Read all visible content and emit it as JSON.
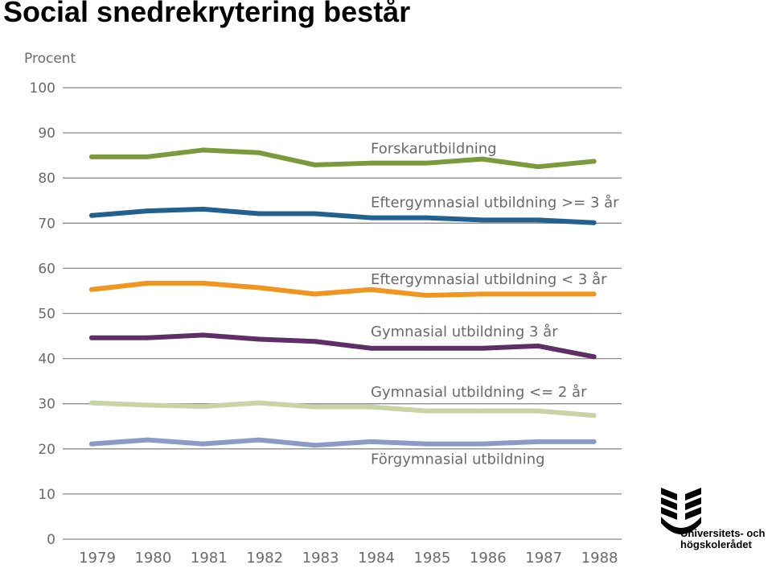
{
  "slide": {
    "title": "Social snedrekrytering består"
  },
  "logo": {
    "line1": "Universitets- och",
    "line2": "högskolerådet",
    "icon": "uhr-logo-icon"
  },
  "chart_data": {
    "type": "line",
    "ylabel": "Procent",
    "ylim": [
      0,
      100
    ],
    "yticks": [
      0,
      10,
      20,
      30,
      40,
      50,
      60,
      70,
      80,
      90,
      100
    ],
    "grid": true,
    "x": [
      "1979",
      "1980",
      "1981",
      "1982",
      "1983",
      "1984",
      "1985",
      "1986",
      "1987",
      "1988"
    ],
    "series": [
      {
        "name": "Forskarutbildning",
        "color": "#7a9a3c",
        "values": [
          84.7,
          84.7,
          86.2,
          85.6,
          82.9,
          83.3,
          83.3,
          84.2,
          82.5,
          83.7
        ],
        "label_value": 86.5
      },
      {
        "name": "Eftergymnasial utbildning  >= 3 år",
        "color": "#22608f",
        "values": [
          71.7,
          72.7,
          73.1,
          72.1,
          72.1,
          71.2,
          71.2,
          70.7,
          70.7,
          70.1
        ],
        "label_value": 74.6
      },
      {
        "name": "Eftergymnasial utbildning  < 3 år",
        "color": "#f0961e",
        "values": [
          55.3,
          56.7,
          56.7,
          55.7,
          54.3,
          55.3,
          54.0,
          54.3,
          54.3,
          54.3
        ],
        "label_value": 57.6
      },
      {
        "name": "Gymnasial utbildning 3 år",
        "color": "#5e2e66",
        "values": [
          44.6,
          44.6,
          45.2,
          44.3,
          43.8,
          42.3,
          42.3,
          42.3,
          42.8,
          40.4
        ],
        "label_value": 46.0
      },
      {
        "name": "Gymnasial utbildning  <= 2 år",
        "color": "#c8d4a6",
        "values": [
          30.2,
          29.7,
          29.4,
          30.2,
          29.3,
          29.3,
          28.4,
          28.4,
          28.4,
          27.4
        ],
        "label_value": 32.6
      },
      {
        "name": "Förgymnasial utbildning",
        "color": "#8a9bc8",
        "values": [
          21.1,
          22.0,
          21.1,
          22.0,
          20.8,
          21.6,
          21.1,
          21.1,
          21.6,
          21.6
        ],
        "label_value": 17.7
      }
    ]
  }
}
